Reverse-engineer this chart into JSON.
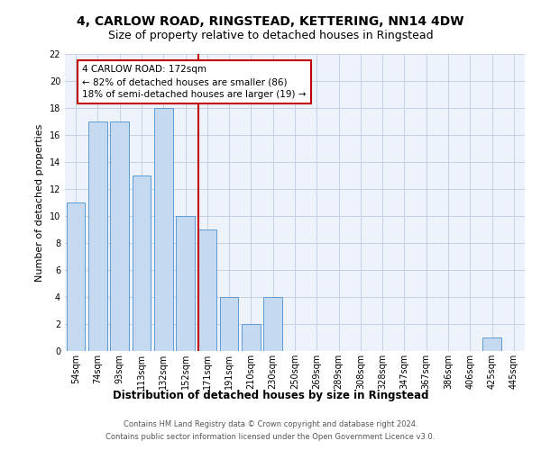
{
  "title": "4, CARLOW ROAD, RINGSTEAD, KETTERING, NN14 4DW",
  "subtitle": "Size of property relative to detached houses in Ringstead",
  "xlabel": "Distribution of detached houses by size in Ringstead",
  "ylabel": "Number of detached properties",
  "categories": [
    "54sqm",
    "74sqm",
    "93sqm",
    "113sqm",
    "132sqm",
    "152sqm",
    "171sqm",
    "191sqm",
    "210sqm",
    "230sqm",
    "250sqm",
    "269sqm",
    "289sqm",
    "308sqm",
    "328sqm",
    "347sqm",
    "367sqm",
    "386sqm",
    "406sqm",
    "425sqm",
    "445sqm"
  ],
  "values": [
    11,
    17,
    17,
    13,
    18,
    10,
    9,
    4,
    2,
    4,
    0,
    0,
    0,
    0,
    0,
    0,
    0,
    0,
    0,
    1,
    0
  ],
  "bar_color": "#c5d9f0",
  "bar_edge_color": "#5b9bd5",
  "highlight_index": 6,
  "highlight_color_line": "#c00000",
  "annotation_text": "4 CARLOW ROAD: 172sqm\n← 82% of detached houses are smaller (86)\n18% of semi-detached houses are larger (19) →",
  "annotation_box_color": "#ffffff",
  "annotation_box_edge": "#c00000",
  "ylim": [
    0,
    22
  ],
  "yticks": [
    0,
    2,
    4,
    6,
    8,
    10,
    12,
    14,
    16,
    18,
    20,
    22
  ],
  "footer_line1": "Contains HM Land Registry data © Crown copyright and database right 2024.",
  "footer_line2": "Contains public sector information licensed under the Open Government Licence v3.0.",
  "bg_color": "#eef2fa",
  "title_fontsize": 10,
  "subtitle_fontsize": 9,
  "tick_fontsize": 7,
  "ylabel_fontsize": 8,
  "xlabel_fontsize": 8.5,
  "footer_fontsize": 6,
  "annotation_fontsize": 7.5
}
